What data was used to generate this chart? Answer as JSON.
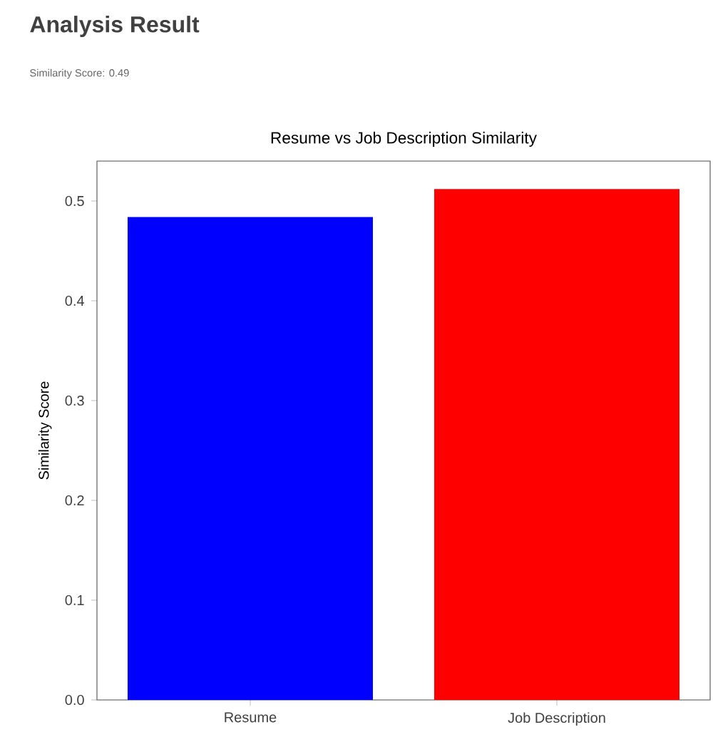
{
  "chart_data": {
    "type": "bar",
    "title": "Resume vs Job Description Similarity",
    "ylabel": "Similarity Score",
    "annotations": [
      "Analysis Result",
      "Similarity Score: 0.49"
    ],
    "categories": [
      "Resume",
      "Job Description"
    ],
    "values": [
      0.484,
      0.512
    ],
    "colors": [
      "#0000ff",
      "#ff0000"
    ],
    "ylim": [
      0,
      0.54
    ],
    "yticks": [
      {
        "value": 0,
        "label": "0.0"
      },
      {
        "value": 0.1,
        "label": "0.1"
      },
      {
        "value": 0.2,
        "label": "0.2"
      },
      {
        "value": 0.3,
        "label": "0.3"
      },
      {
        "value": 0.4,
        "label": "0.4"
      },
      {
        "value": 0.5,
        "label": "0.5"
      }
    ]
  }
}
